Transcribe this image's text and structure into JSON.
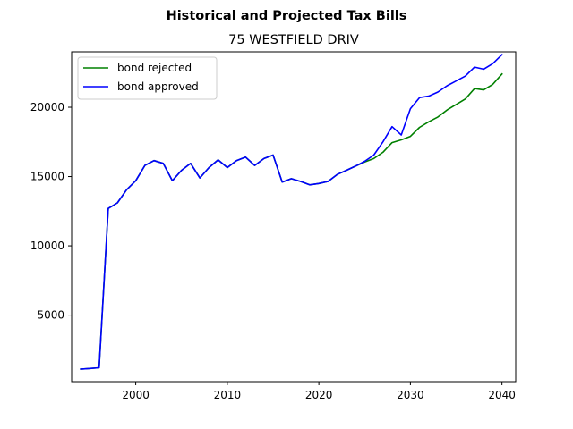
{
  "chart_data": {
    "type": "line",
    "title": "Historical and Projected Tax Bills",
    "subtitle": "75 WESTFIELD DRIV",
    "xlabel": "",
    "ylabel": "",
    "xlim": [
      1993,
      2041.5
    ],
    "ylim": [
      200,
      24000
    ],
    "x_ticks": [
      2000,
      2010,
      2020,
      2030,
      2040
    ],
    "y_ticks": [
      5000,
      10000,
      15000,
      20000
    ],
    "grid": false,
    "legend_position": "upper-left",
    "x": [
      1994,
      1995,
      1996,
      1997,
      1998,
      1999,
      2000,
      2001,
      2002,
      2003,
      2004,
      2005,
      2006,
      2007,
      2008,
      2009,
      2010,
      2011,
      2012,
      2013,
      2014,
      2015,
      2016,
      2017,
      2018,
      2019,
      2020,
      2021,
      2022,
      2023,
      2024,
      2025,
      2026,
      2027,
      2028,
      2029,
      2030,
      2031,
      2032,
      2033,
      2034,
      2035,
      2036,
      2037,
      2038,
      2039,
      2040
    ],
    "series": [
      {
        "name": "bond rejected",
        "color": "#008000",
        "values": [
          1100,
          1150,
          1200,
          12700,
          13100,
          14050,
          14700,
          15800,
          16150,
          15950,
          14700,
          15450,
          15950,
          14900,
          15650,
          16200,
          15650,
          16150,
          16400,
          15800,
          16300,
          16550,
          14600,
          14850,
          14650,
          14400,
          14500,
          14650,
          15150,
          15450,
          15750,
          16050,
          16300,
          16750,
          17450,
          17650,
          17900,
          18550,
          18950,
          19300,
          19800,
          20200,
          20600,
          21350,
          21250,
          21650,
          22400
        ]
      },
      {
        "name": "bond approved",
        "color": "#0000ff",
        "values": [
          1100,
          1150,
          1200,
          12700,
          13100,
          14050,
          14700,
          15800,
          16150,
          15950,
          14700,
          15450,
          15950,
          14900,
          15650,
          16200,
          15650,
          16150,
          16400,
          15800,
          16300,
          16550,
          14600,
          14850,
          14650,
          14400,
          14500,
          14650,
          15150,
          15450,
          15750,
          16100,
          16550,
          17500,
          18600,
          18000,
          19900,
          20700,
          20800,
          21100,
          21550,
          21900,
          22250,
          22900,
          22750,
          23150,
          23800
        ]
      }
    ]
  }
}
